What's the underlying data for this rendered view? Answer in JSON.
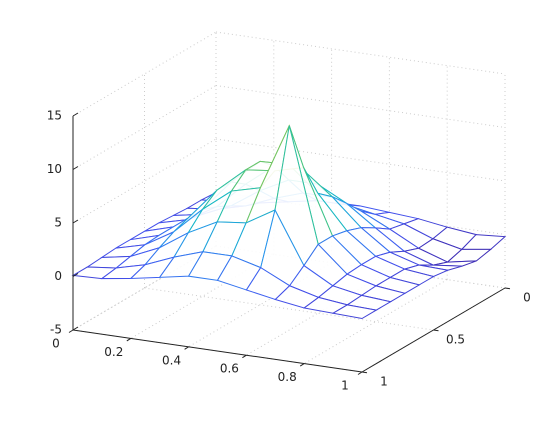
{
  "chart_data": {
    "type": "mesh",
    "x": [
      0,
      0.1,
      0.2,
      0.3,
      0.4,
      0.5,
      0.6,
      0.7,
      0.8,
      0.9,
      1
    ],
    "y": [
      0,
      0.1,
      0.2,
      0.3,
      0.4,
      0.5,
      0.6,
      0.7,
      0.8,
      0.9,
      1
    ],
    "z": [
      [
        0.0,
        0.1,
        0.3,
        0.5,
        0.7,
        0.7,
        0.5,
        0.3,
        -0.1,
        -0.4,
        -0.2
      ],
      [
        0.1,
        0.2,
        0.6,
        1.1,
        1.6,
        1.6,
        1.1,
        0.6,
        -0.4,
        -1.0,
        -0.6
      ],
      [
        0.1,
        0.4,
        1.1,
        2.2,
        3.1,
        3.1,
        2.2,
        0.9,
        -0.5,
        -1.4,
        -0.9
      ],
      [
        0.2,
        0.7,
        1.9,
        3.7,
        5.1,
        5.1,
        3.7,
        1.8,
        0.0,
        -0.9,
        -0.6
      ],
      [
        0.3,
        1.0,
        2.6,
        5.1,
        7.2,
        7.2,
        5.1,
        2.6,
        0.7,
        -0.1,
        -0.2
      ],
      [
        0.3,
        1.1,
        3.1,
        6.1,
        8.4,
        8.5,
        6.2,
        3.1,
        1.1,
        0.3,
        0.0
      ],
      [
        0.3,
        1.1,
        3.1,
        6.1,
        8.4,
        8.7,
        9.4,
        3.4,
        1.1,
        0.3,
        0.0
      ],
      [
        0.3,
        1.0,
        2.6,
        5.1,
        7.2,
        7.9,
        14.1,
        3.4,
        1.0,
        0.3,
        0.0
      ],
      [
        0.2,
        0.7,
        1.9,
        3.7,
        5.1,
        5.4,
        7.0,
        2.2,
        0.7,
        0.2,
        0.0
      ],
      [
        0.1,
        0.4,
        1.1,
        2.2,
        3.1,
        3.1,
        2.4,
        1.1,
        0.4,
        0.1,
        0.0
      ],
      [
        0.1,
        0.2,
        0.6,
        1.1,
        1.6,
        1.6,
        1.1,
        0.6,
        0.2,
        0.1,
        0.0
      ]
    ],
    "xlim": [
      0,
      1
    ],
    "xticks": [
      0,
      0.2,
      0.4,
      0.6,
      0.8,
      1
    ],
    "ylim": [
      0,
      1
    ],
    "yticks": [
      0,
      0.5,
      1
    ],
    "zlim": [
      -5,
      15
    ],
    "zticks": [
      -5,
      0,
      5,
      10,
      15
    ],
    "grid": true,
    "colormap": [
      "#3e26a8",
      "#4353f0",
      "#2a8ff0",
      "#13b8c8",
      "#3cc48a",
      "#9ec53f",
      "#e9ba2e",
      "#f9fb15"
    ]
  }
}
